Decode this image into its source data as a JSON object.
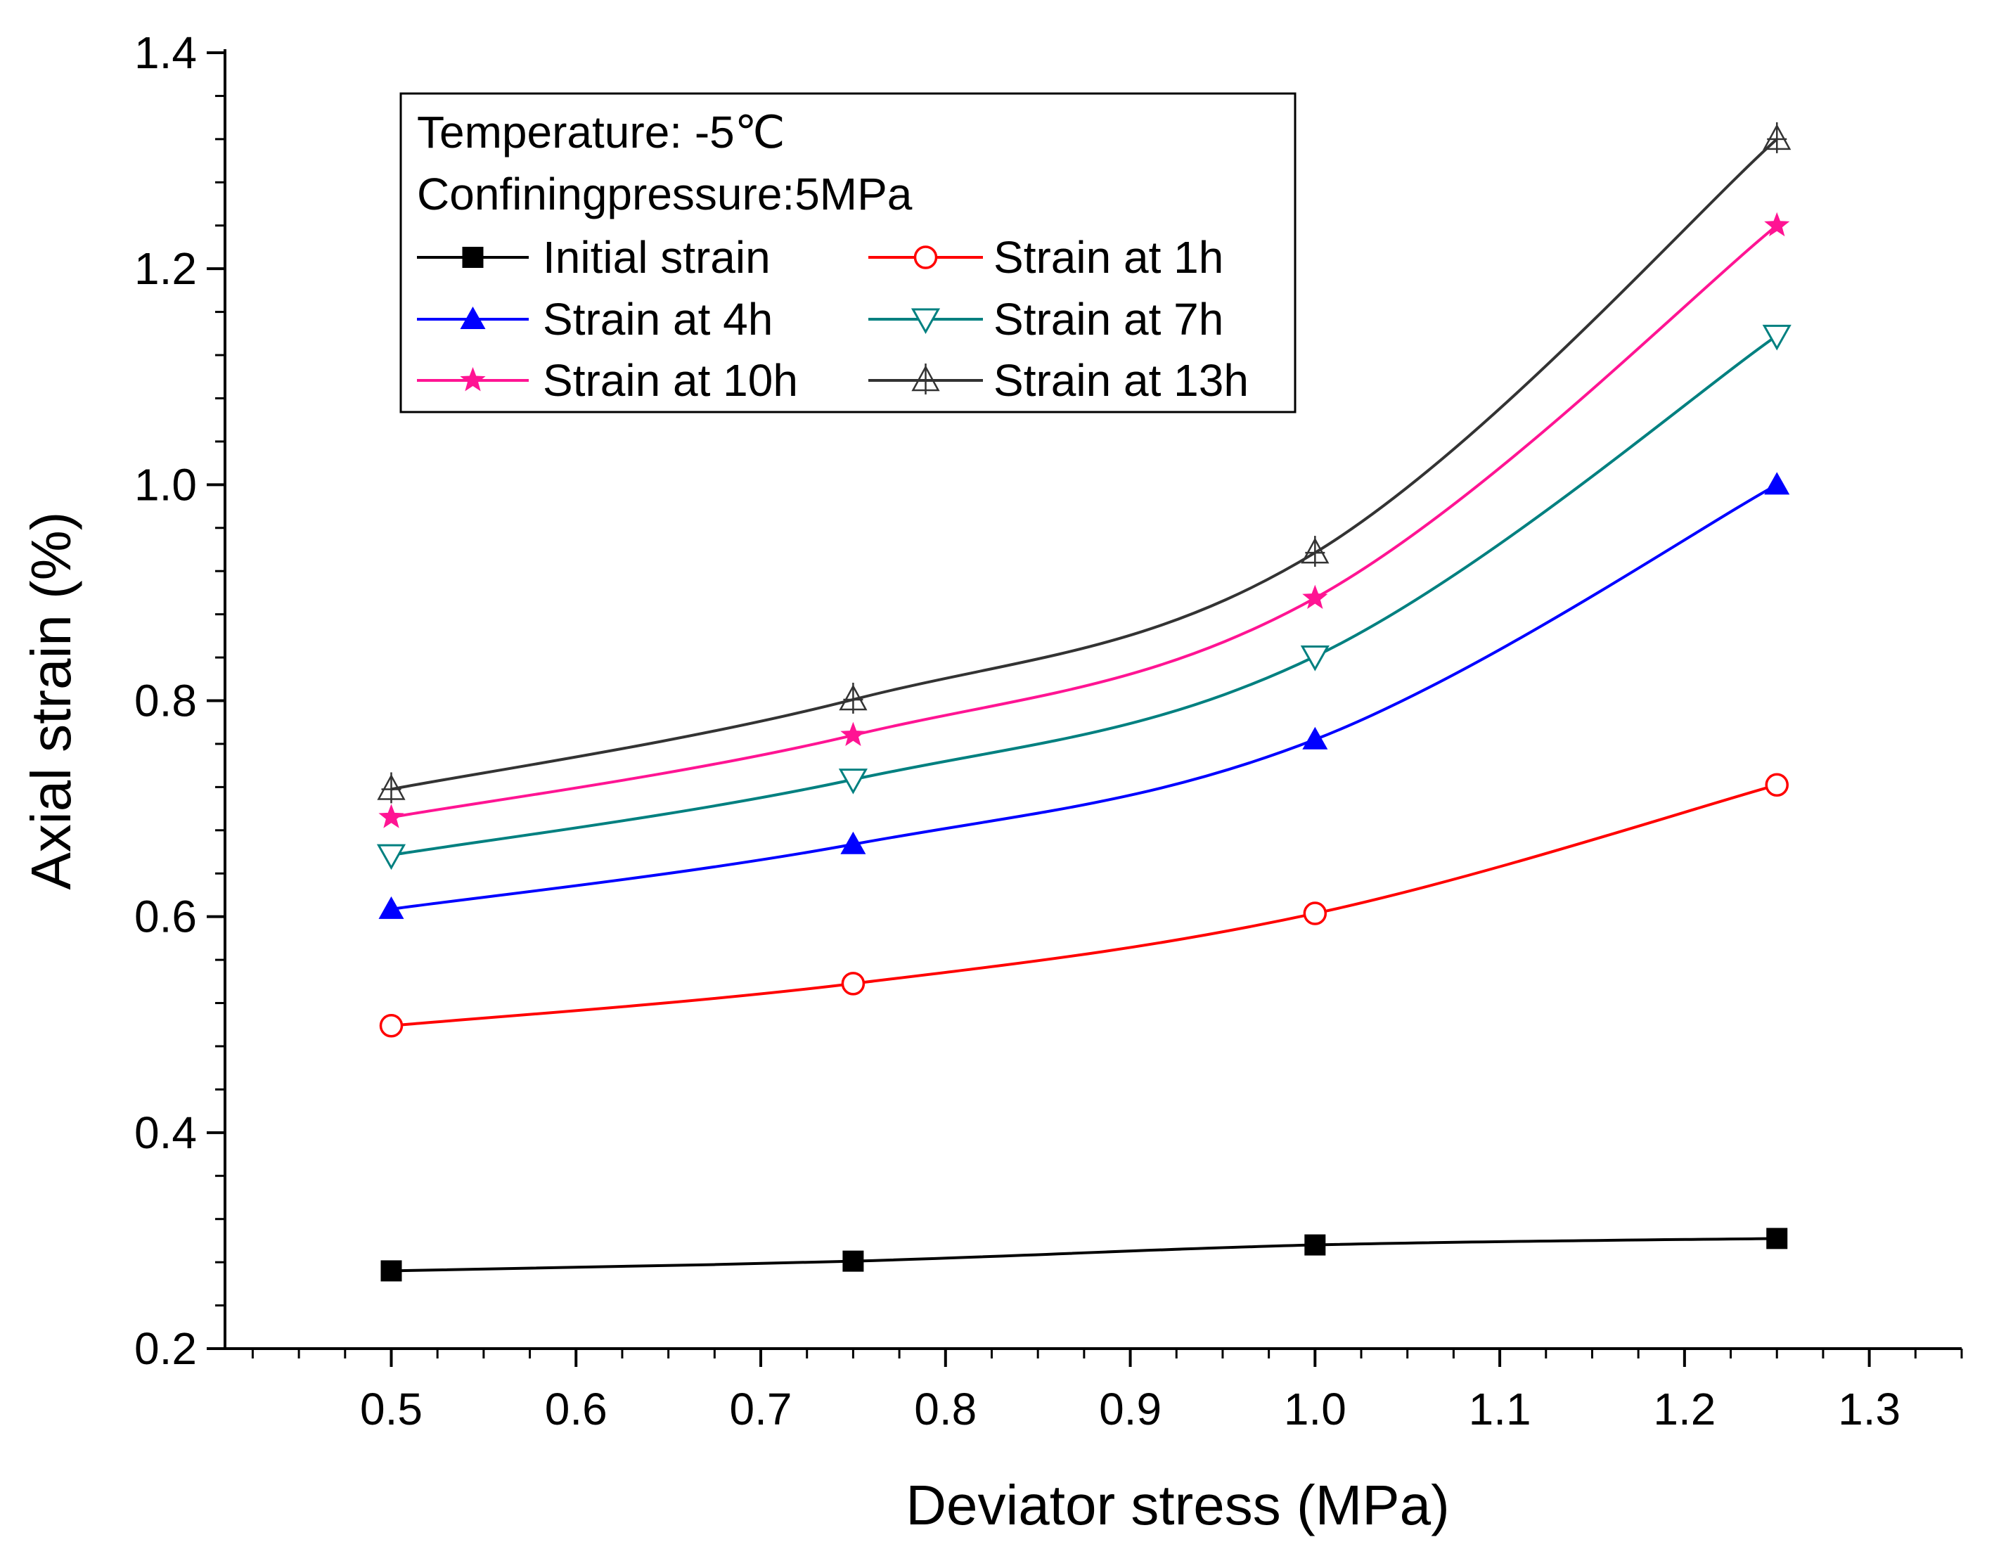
{
  "chart_data": {
    "type": "line",
    "title": "",
    "xlabel": "Deviator stress (MPa)",
    "ylabel": "Axial strain (%)",
    "xlim": [
      0.41,
      1.35
    ],
    "ylim": [
      0.2,
      1.4
    ],
    "xticks": [
      0.5,
      0.6,
      0.7,
      0.8,
      0.9,
      1.0,
      1.1,
      1.2,
      1.3
    ],
    "xtick_labels": [
      "0.5",
      "0.6",
      "0.7",
      "0.8",
      "0.9",
      "1.0",
      "1.1",
      "1.2",
      "1.3"
    ],
    "yticks": [
      0.2,
      0.4,
      0.6,
      0.8,
      1.0,
      1.2,
      1.4
    ],
    "ytick_labels": [
      "0.2",
      "0.4",
      "0.6",
      "0.8",
      "1.0",
      "1.2",
      "1.4"
    ],
    "grid": false,
    "legend_position": "top-left",
    "annotations": [
      "Temperature: -5℃",
      "Confiningpressure:5MPa"
    ],
    "x": [
      0.5,
      0.75,
      1.0,
      1.25
    ],
    "series": [
      {
        "name": "Initial strain",
        "values": [
          0.272,
          0.281,
          0.296,
          0.302
        ],
        "color": "#000000",
        "marker": "filled-square"
      },
      {
        "name": "Strain at 1h",
        "values": [
          0.499,
          0.538,
          0.603,
          0.722
        ],
        "color": "#ff0000",
        "marker": "open-circle"
      },
      {
        "name": "Strain at 4h",
        "values": [
          0.607,
          0.667,
          0.764,
          1.0
        ],
        "color": "#0000ff",
        "marker": "filled-triangle-up"
      },
      {
        "name": "Strain at 7h",
        "values": [
          0.657,
          0.727,
          0.841,
          1.138
        ],
        "color": "#008080",
        "marker": "open-triangle-down"
      },
      {
        "name": "Strain at 10h",
        "values": [
          0.692,
          0.768,
          0.895,
          1.24
        ],
        "color": "#ff1493",
        "marker": "filled-star"
      },
      {
        "name": "Strain at 13h",
        "values": [
          0.718,
          0.801,
          0.937,
          1.32
        ],
        "color": "#333333",
        "marker": "open-triangle-up-cross"
      }
    ]
  }
}
